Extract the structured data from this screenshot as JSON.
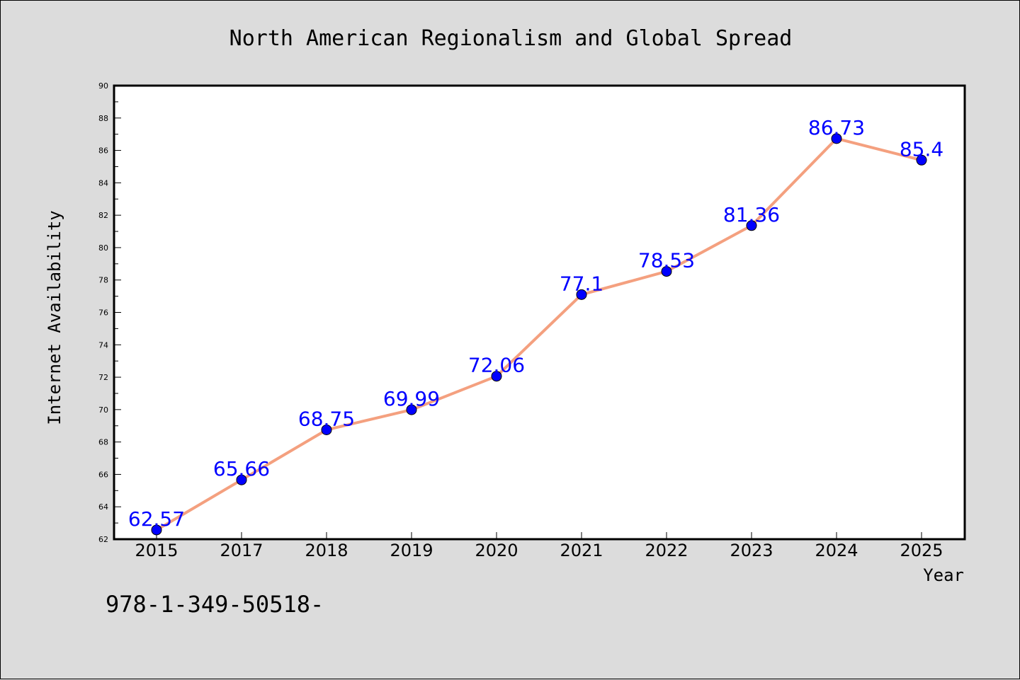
{
  "chart_data": {
    "type": "line",
    "title": "North American Regionalism and Global Spread",
    "xlabel": "Year",
    "ylabel": "Internet Availability",
    "categories": [
      "2015",
      "2017",
      "2018",
      "2019",
      "2020",
      "2021",
      "2022",
      "2023",
      "2024",
      "2025"
    ],
    "series": [
      {
        "values": [
          62.57,
          65.66,
          68.75,
          69.99,
          72.06,
          77.1,
          78.53,
          81.36,
          86.73,
          85.4
        ],
        "data_labels": [
          "62.57",
          "65.66",
          "68.75",
          "69.99",
          "72.06",
          "77.1",
          "78.53",
          "81.36",
          "86.73",
          "85.4"
        ],
        "line_color": "#f4a07f",
        "marker_color": "#0000ff"
      }
    ],
    "ylim": [
      62,
      90
    ],
    "yticks": [
      "62",
      "64",
      "66",
      "68",
      "70",
      "72",
      "74",
      "76",
      "78",
      "80",
      "82",
      "84",
      "86",
      "88",
      "90"
    ],
    "grid": false,
    "legend": false,
    "label_color": "#0000ff"
  },
  "footer": {
    "text": "978-1-349-50518-"
  }
}
